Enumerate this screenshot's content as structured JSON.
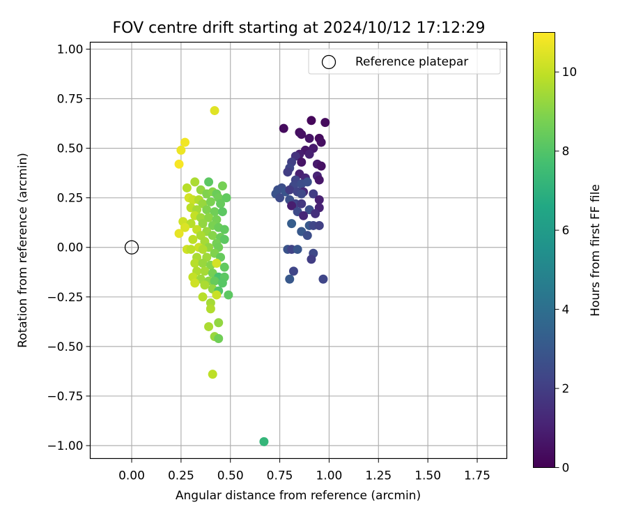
{
  "chart_data": {
    "type": "scatter",
    "title": "FOV centre drift starting at 2024/10/12 17:12:29",
    "xlabel": "Angular distance from reference (arcmin)",
    "ylabel": "Rotation from reference (arcmin)",
    "xlim": [
      -0.21,
      1.9
    ],
    "ylim": [
      -1.065,
      1.035
    ],
    "xticks": [
      "0.00",
      "0.25",
      "0.50",
      "0.75",
      "1.00",
      "1.25",
      "1.50",
      "1.75"
    ],
    "yticks": [
      "1.00",
      "0.75",
      "0.50",
      "0.25",
      "0.00",
      "−0.25",
      "−0.50",
      "−0.75",
      "−1.00"
    ],
    "grid": true,
    "legend": {
      "position": "top-right",
      "entries": [
        "Reference platepar"
      ]
    },
    "reference_point": {
      "x": 0.0,
      "y": 0.0
    },
    "colorbar": {
      "label": "Hours from first FF file",
      "range": [
        0,
        11
      ],
      "ticks": [
        "0",
        "2",
        "4",
        "6",
        "8",
        "10"
      ],
      "colormap": "viridis"
    },
    "points": [
      {
        "x": 0.77,
        "y": 0.6,
        "c": 0.3
      },
      {
        "x": 0.91,
        "y": 0.64,
        "c": 0.2
      },
      {
        "x": 0.98,
        "y": 0.63,
        "c": 0.3
      },
      {
        "x": 0.85,
        "y": 0.58,
        "c": 0.4
      },
      {
        "x": 0.86,
        "y": 0.57,
        "c": 0.5
      },
      {
        "x": 0.9,
        "y": 0.55,
        "c": 0.6
      },
      {
        "x": 0.95,
        "y": 0.55,
        "c": 0.3
      },
      {
        "x": 0.96,
        "y": 0.53,
        "c": 0.4
      },
      {
        "x": 0.88,
        "y": 0.49,
        "c": 0.7
      },
      {
        "x": 0.92,
        "y": 0.5,
        "c": 0.8
      },
      {
        "x": 0.85,
        "y": 0.47,
        "c": 0.9
      },
      {
        "x": 0.9,
        "y": 0.47,
        "c": 1.0
      },
      {
        "x": 0.83,
        "y": 0.46,
        "c": 1.6
      },
      {
        "x": 0.86,
        "y": 0.43,
        "c": 0.6
      },
      {
        "x": 0.94,
        "y": 0.42,
        "c": 0.8
      },
      {
        "x": 0.96,
        "y": 0.41,
        "c": 0.5
      },
      {
        "x": 0.81,
        "y": 0.43,
        "c": 2.1
      },
      {
        "x": 0.8,
        "y": 0.4,
        "c": 2.3
      },
      {
        "x": 0.79,
        "y": 0.38,
        "c": 2.0
      },
      {
        "x": 0.85,
        "y": 0.37,
        "c": 1.0
      },
      {
        "x": 0.88,
        "y": 0.35,
        "c": 1.2
      },
      {
        "x": 0.94,
        "y": 0.36,
        "c": 1.1
      },
      {
        "x": 0.95,
        "y": 0.34,
        "c": 0.7
      },
      {
        "x": 0.83,
        "y": 0.34,
        "c": 2.3
      },
      {
        "x": 0.82,
        "y": 0.31,
        "c": 2.4
      },
      {
        "x": 0.86,
        "y": 0.32,
        "c": 2.6
      },
      {
        "x": 0.89,
        "y": 0.33,
        "c": 2.7
      },
      {
        "x": 0.76,
        "y": 0.3,
        "c": 2.6
      },
      {
        "x": 0.74,
        "y": 0.29,
        "c": 2.7
      },
      {
        "x": 0.78,
        "y": 0.28,
        "c": 2.9
      },
      {
        "x": 0.8,
        "y": 0.29,
        "c": 1.9
      },
      {
        "x": 0.84,
        "y": 0.28,
        "c": 2.2
      },
      {
        "x": 0.87,
        "y": 0.28,
        "c": 1.3
      },
      {
        "x": 0.73,
        "y": 0.27,
        "c": 2.8
      },
      {
        "x": 0.75,
        "y": 0.25,
        "c": 2.5
      },
      {
        "x": 0.92,
        "y": 0.27,
        "c": 2.0
      },
      {
        "x": 0.86,
        "y": 0.27,
        "c": 2.4
      },
      {
        "x": 0.8,
        "y": 0.24,
        "c": 2.7
      },
      {
        "x": 0.83,
        "y": 0.22,
        "c": 2.2
      },
      {
        "x": 0.86,
        "y": 0.22,
        "c": 1.8
      },
      {
        "x": 0.95,
        "y": 0.24,
        "c": 1.0
      },
      {
        "x": 0.81,
        "y": 0.21,
        "c": 0.9
      },
      {
        "x": 0.9,
        "y": 0.19,
        "c": 2.6
      },
      {
        "x": 0.95,
        "y": 0.2,
        "c": 1.1
      },
      {
        "x": 0.84,
        "y": 0.18,
        "c": 2.5
      },
      {
        "x": 0.87,
        "y": 0.16,
        "c": 1.2
      },
      {
        "x": 0.93,
        "y": 0.17,
        "c": 1.5
      },
      {
        "x": 0.81,
        "y": 0.12,
        "c": 3.2
      },
      {
        "x": 0.9,
        "y": 0.11,
        "c": 3.0
      },
      {
        "x": 0.92,
        "y": 0.11,
        "c": 2.3
      },
      {
        "x": 0.95,
        "y": 0.11,
        "c": 2.1
      },
      {
        "x": 0.86,
        "y": 0.08,
        "c": 3.0
      },
      {
        "x": 0.89,
        "y": 0.06,
        "c": 2.6
      },
      {
        "x": 0.79,
        "y": -0.01,
        "c": 2.8
      },
      {
        "x": 0.81,
        "y": -0.01,
        "c": 2.2
      },
      {
        "x": 0.84,
        "y": -0.01,
        "c": 2.9
      },
      {
        "x": 0.92,
        "y": -0.03,
        "c": 2.4
      },
      {
        "x": 0.91,
        "y": -0.06,
        "c": 2.0
      },
      {
        "x": 0.82,
        "y": -0.12,
        "c": 2.3
      },
      {
        "x": 0.8,
        "y": -0.16,
        "c": 3.0
      },
      {
        "x": 0.97,
        "y": -0.16,
        "c": 2.3
      },
      {
        "x": 0.42,
        "y": 0.69,
        "c": 10.5
      },
      {
        "x": 0.27,
        "y": 0.53,
        "c": 10.8
      },
      {
        "x": 0.25,
        "y": 0.49,
        "c": 10.7
      },
      {
        "x": 0.24,
        "y": 0.42,
        "c": 10.9
      },
      {
        "x": 0.32,
        "y": 0.33,
        "c": 9.6
      },
      {
        "x": 0.39,
        "y": 0.33,
        "c": 8.2
      },
      {
        "x": 0.46,
        "y": 0.31,
        "c": 8.7
      },
      {
        "x": 0.28,
        "y": 0.3,
        "c": 9.8
      },
      {
        "x": 0.35,
        "y": 0.29,
        "c": 9.2
      },
      {
        "x": 0.38,
        "y": 0.27,
        "c": 8.9
      },
      {
        "x": 0.41,
        "y": 0.28,
        "c": 9.0
      },
      {
        "x": 0.43,
        "y": 0.27,
        "c": 8.5
      },
      {
        "x": 0.44,
        "y": 0.25,
        "c": 8.6
      },
      {
        "x": 0.48,
        "y": 0.25,
        "c": 8.3
      },
      {
        "x": 0.29,
        "y": 0.25,
        "c": 10.3
      },
      {
        "x": 0.31,
        "y": 0.24,
        "c": 10.1
      },
      {
        "x": 0.34,
        "y": 0.24,
        "c": 9.7
      },
      {
        "x": 0.36,
        "y": 0.22,
        "c": 9.3
      },
      {
        "x": 0.4,
        "y": 0.23,
        "c": 8.8
      },
      {
        "x": 0.45,
        "y": 0.22,
        "c": 8.4
      },
      {
        "x": 0.3,
        "y": 0.2,
        "c": 9.9
      },
      {
        "x": 0.33,
        "y": 0.19,
        "c": 9.5
      },
      {
        "x": 0.38,
        "y": 0.19,
        "c": 8.9
      },
      {
        "x": 0.42,
        "y": 0.18,
        "c": 8.6
      },
      {
        "x": 0.46,
        "y": 0.18,
        "c": 8.2
      },
      {
        "x": 0.32,
        "y": 0.16,
        "c": 10.0
      },
      {
        "x": 0.35,
        "y": 0.15,
        "c": 9.4
      },
      {
        "x": 0.39,
        "y": 0.15,
        "c": 9.1
      },
      {
        "x": 0.43,
        "y": 0.14,
        "c": 8.7
      },
      {
        "x": 0.26,
        "y": 0.13,
        "c": 10.2
      },
      {
        "x": 0.3,
        "y": 0.12,
        "c": 9.8
      },
      {
        "x": 0.36,
        "y": 0.12,
        "c": 9.2
      },
      {
        "x": 0.41,
        "y": 0.11,
        "c": 8.8
      },
      {
        "x": 0.44,
        "y": 0.1,
        "c": 8.5
      },
      {
        "x": 0.47,
        "y": 0.09,
        "c": 8.3
      },
      {
        "x": 0.27,
        "y": 0.1,
        "c": 10.4
      },
      {
        "x": 0.33,
        "y": 0.09,
        "c": 10.0
      },
      {
        "x": 0.38,
        "y": 0.08,
        "c": 9.3
      },
      {
        "x": 0.24,
        "y": 0.07,
        "c": 10.6
      },
      {
        "x": 0.35,
        "y": 0.06,
        "c": 9.6
      },
      {
        "x": 0.41,
        "y": 0.06,
        "c": 9.0
      },
      {
        "x": 0.45,
        "y": 0.05,
        "c": 8.5
      },
      {
        "x": 0.31,
        "y": 0.04,
        "c": 9.9
      },
      {
        "x": 0.37,
        "y": 0.03,
        "c": 9.5
      },
      {
        "x": 0.43,
        "y": 0.02,
        "c": 8.7
      },
      {
        "x": 0.47,
        "y": 0.04,
        "c": 8.2
      },
      {
        "x": 0.34,
        "y": 0.0,
        "c": 10.1
      },
      {
        "x": 0.39,
        "y": 0.0,
        "c": 9.2
      },
      {
        "x": 0.44,
        "y": 0.0,
        "c": 8.6
      },
      {
        "x": 0.28,
        "y": -0.01,
        "c": 10.2
      },
      {
        "x": 0.3,
        "y": -0.01,
        "c": 9.9
      },
      {
        "x": 0.36,
        "y": -0.01,
        "c": 9.7
      },
      {
        "x": 0.42,
        "y": -0.03,
        "c": 8.9
      },
      {
        "x": 0.33,
        "y": -0.05,
        "c": 9.6
      },
      {
        "x": 0.38,
        "y": -0.05,
        "c": 9.4
      },
      {
        "x": 0.45,
        "y": -0.05,
        "c": 8.4
      },
      {
        "x": 0.32,
        "y": -0.08,
        "c": 9.8
      },
      {
        "x": 0.36,
        "y": -0.08,
        "c": 9.3
      },
      {
        "x": 0.4,
        "y": -0.09,
        "c": 9.0
      },
      {
        "x": 0.43,
        "y": -0.08,
        "c": 10.3
      },
      {
        "x": 0.47,
        "y": -0.1,
        "c": 8.3
      },
      {
        "x": 0.33,
        "y": -0.12,
        "c": 9.7
      },
      {
        "x": 0.37,
        "y": -0.12,
        "c": 9.5
      },
      {
        "x": 0.41,
        "y": -0.13,
        "c": 8.7
      },
      {
        "x": 0.44,
        "y": -0.15,
        "c": 7.8
      },
      {
        "x": 0.47,
        "y": -0.15,
        "c": 8.2
      },
      {
        "x": 0.31,
        "y": -0.15,
        "c": 10.0
      },
      {
        "x": 0.35,
        "y": -0.16,
        "c": 9.4
      },
      {
        "x": 0.39,
        "y": -0.17,
        "c": 9.1
      },
      {
        "x": 0.42,
        "y": -0.17,
        "c": 8.4
      },
      {
        "x": 0.46,
        "y": -0.18,
        "c": 8.1
      },
      {
        "x": 0.32,
        "y": -0.18,
        "c": 10.2
      },
      {
        "x": 0.37,
        "y": -0.19,
        "c": 9.6
      },
      {
        "x": 0.41,
        "y": -0.21,
        "c": 9.2
      },
      {
        "x": 0.44,
        "y": -0.22,
        "c": 8.0
      },
      {
        "x": 0.49,
        "y": -0.24,
        "c": 8.2
      },
      {
        "x": 0.43,
        "y": -0.24,
        "c": 10.1
      },
      {
        "x": 0.36,
        "y": -0.25,
        "c": 9.8
      },
      {
        "x": 0.4,
        "y": -0.28,
        "c": 9.5
      },
      {
        "x": 0.4,
        "y": -0.31,
        "c": 9.7
      },
      {
        "x": 0.44,
        "y": -0.38,
        "c": 9.2
      },
      {
        "x": 0.39,
        "y": -0.4,
        "c": 9.6
      },
      {
        "x": 0.42,
        "y": -0.45,
        "c": 9.3
      },
      {
        "x": 0.44,
        "y": -0.46,
        "c": 8.6
      },
      {
        "x": 0.41,
        "y": -0.64,
        "c": 9.9
      },
      {
        "x": 0.67,
        "y": -0.98,
        "c": 7.2
      }
    ]
  }
}
